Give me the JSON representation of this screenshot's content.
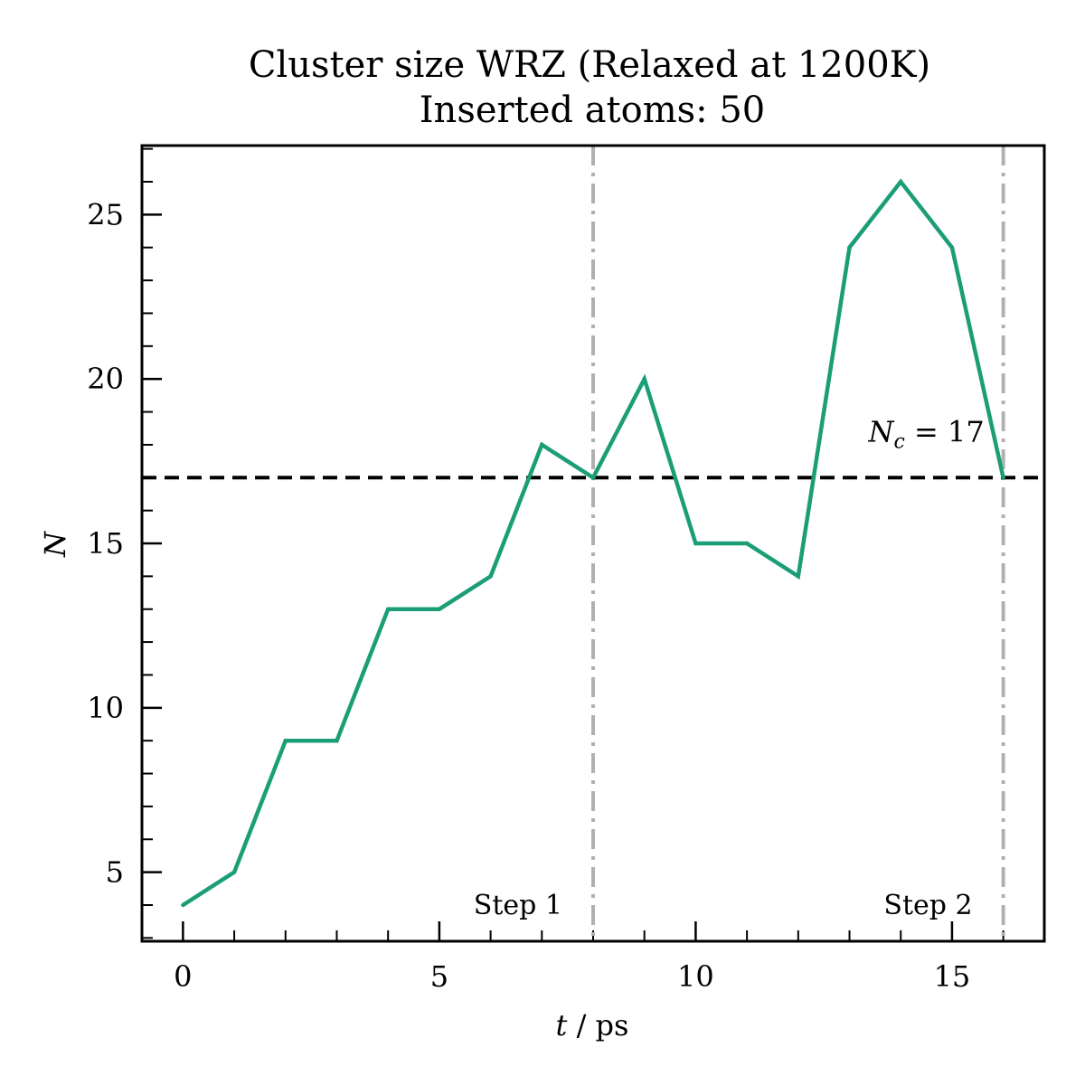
{
  "chart_data": {
    "type": "line",
    "title": "Cluster size WRZ (Relaxed at 1200K)",
    "subtitle": "Inserted atoms: 50",
    "xlabel": {
      "var": "t",
      "unit": " / ps"
    },
    "ylabel": "N",
    "xlim": [
      -0.8,
      16.8
    ],
    "ylim": [
      2.9,
      27.1
    ],
    "x_ticks": [
      0,
      5,
      10,
      15
    ],
    "y_ticks": [
      5,
      10,
      15,
      20,
      25
    ],
    "x_minor_step": 1,
    "y_minor_step": 1,
    "grid": false,
    "series": [
      {
        "color": "#1b9e77",
        "x": [
          0,
          1,
          2,
          3,
          4,
          5,
          6,
          7,
          8,
          9,
          10,
          11,
          12,
          13,
          14,
          15,
          16
        ],
        "y": [
          4,
          5,
          9,
          9,
          13,
          13,
          14,
          18,
          17,
          20,
          15,
          15,
          14,
          24,
          26,
          24,
          17
        ]
      }
    ],
    "reference_line": {
      "y": 17,
      "color": "#000000",
      "label": {
        "var": "N",
        "sub": "c",
        "text": " = 17",
        "x": 14.5,
        "y": 18.1
      }
    },
    "step_markers": [
      {
        "x": 8,
        "label": "Step 1",
        "label_x": 7.4,
        "label_y": 4.0
      },
      {
        "x": 16,
        "label": "Step 2",
        "label_x": 15.4,
        "label_y": 4.0
      }
    ],
    "step_marker_color": "#b0b0b0"
  }
}
